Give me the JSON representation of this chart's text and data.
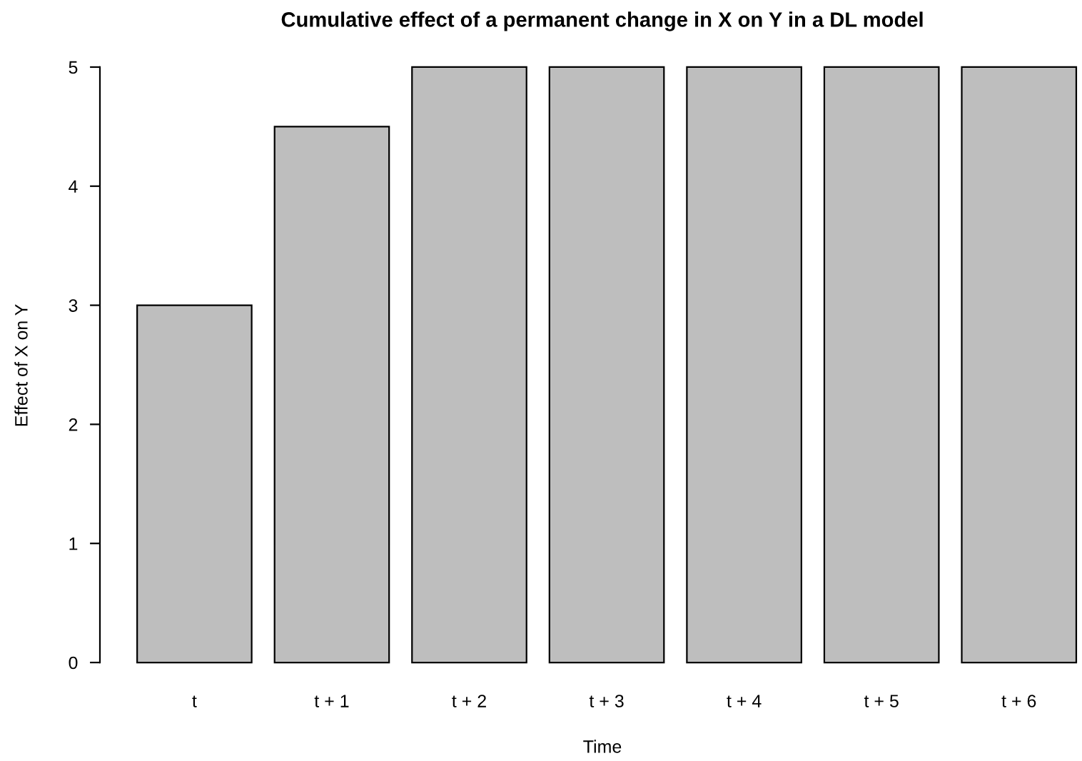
{
  "chart_data": {
    "type": "bar",
    "title": "Cumulative effect of a permanent change in X on Y in a DL model",
    "xlabel": "Time",
    "ylabel": "Effect of X on Y",
    "categories": [
      "t",
      "t + 1",
      "t + 2",
      "t + 3",
      "t + 4",
      "t + 5",
      "t + 6"
    ],
    "values": [
      3,
      4.5,
      5,
      5,
      5,
      5,
      5
    ],
    "color": "#bebebe",
    "ylim": [
      0,
      5
    ],
    "yticks": [
      0,
      1,
      2,
      3,
      4,
      5
    ],
    "grid": false
  }
}
